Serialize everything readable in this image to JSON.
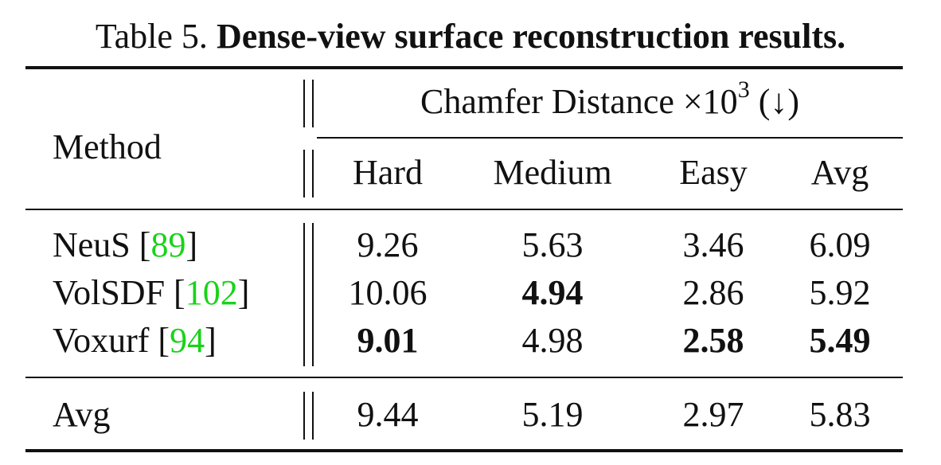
{
  "caption": {
    "prefix": "Table 5.",
    "title": "Dense-view surface reconstruction results."
  },
  "header": {
    "method": "Method",
    "group": {
      "label": "Chamfer Distance ×10",
      "exponent": "3",
      "direction": "(↓)"
    },
    "columns": [
      "Hard",
      "Medium",
      "Easy",
      "Avg"
    ]
  },
  "rows": [
    {
      "method": "NeuS",
      "cite": "89",
      "values": [
        "9.26",
        "5.63",
        "3.46",
        "6.09"
      ],
      "bold": [
        false,
        false,
        false,
        false
      ]
    },
    {
      "method": "VolSDF",
      "cite": "102",
      "values": [
        "10.06",
        "4.94",
        "2.86",
        "5.92"
      ],
      "bold": [
        false,
        true,
        false,
        false
      ]
    },
    {
      "method": "Voxurf",
      "cite": "94",
      "values": [
        "9.01",
        "4.98",
        "2.58",
        "5.49"
      ],
      "bold": [
        true,
        false,
        true,
        true
      ]
    }
  ],
  "avg_row": {
    "method": "Avg",
    "values": [
      "9.44",
      "5.19",
      "2.97",
      "5.83"
    ]
  },
  "colors": {
    "citation": "#19d319",
    "text": "#111111"
  }
}
